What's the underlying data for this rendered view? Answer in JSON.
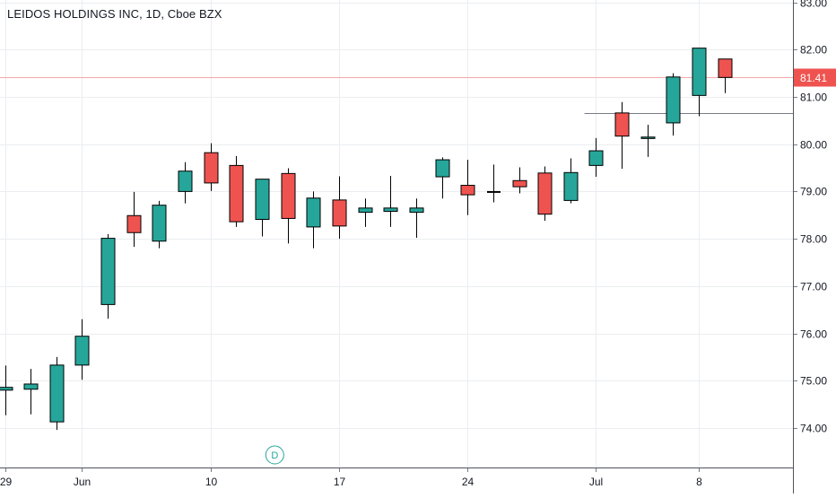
{
  "colors": {
    "up": "#26a69a",
    "down": "#ef5350",
    "outline": "#000000",
    "grid": "#ebedf0",
    "axis_text": "#131722",
    "price_line": "#f7a9a7",
    "price_label_bg": "#ef5350",
    "price_label_text": "#ffffff",
    "level_line": "#787b86",
    "marker": "#26a69a"
  },
  "chart_data": {
    "type": "candlestick",
    "title": "LEIDOS HOLDINGS INC, 1D, Cboe BZX",
    "y_axis": {
      "side": "right",
      "range": [
        73.3,
        83.0
      ],
      "ticks": [
        "74.00",
        "75.00",
        "76.00",
        "77.00",
        "78.00",
        "79.00",
        "80.00",
        "81.00",
        "82.00",
        "83.00"
      ]
    },
    "x_axis": {
      "ticks": [
        {
          "label": "29",
          "index": 0
        },
        {
          "label": "Jun",
          "index": 3
        },
        {
          "label": "10",
          "index": 8
        },
        {
          "label": "17",
          "index": 13
        },
        {
          "label": "24",
          "index": 18
        },
        {
          "label": "Jul",
          "index": 23
        },
        {
          "label": "8",
          "index": 27
        }
      ]
    },
    "grid": true,
    "candles": [
      {
        "o": 74.8,
        "h": 75.32,
        "l": 74.27,
        "c": 74.86
      },
      {
        "o": 74.82,
        "h": 75.25,
        "l": 74.29,
        "c": 74.93
      },
      {
        "o": 74.13,
        "h": 75.5,
        "l": 73.96,
        "c": 75.33
      },
      {
        "o": 75.33,
        "h": 76.3,
        "l": 75.02,
        "c": 75.94
      },
      {
        "o": 76.61,
        "h": 78.1,
        "l": 76.31,
        "c": 78.01
      },
      {
        "o": 78.49,
        "h": 78.99,
        "l": 77.83,
        "c": 78.13
      },
      {
        "o": 77.95,
        "h": 78.8,
        "l": 77.8,
        "c": 78.71
      },
      {
        "o": 79.0,
        "h": 79.62,
        "l": 78.75,
        "c": 79.43
      },
      {
        "o": 79.82,
        "h": 80.02,
        "l": 79.01,
        "c": 79.18
      },
      {
        "o": 79.55,
        "h": 79.75,
        "l": 78.25,
        "c": 78.36
      },
      {
        "o": 78.41,
        "h": 79.26,
        "l": 78.05,
        "c": 79.26
      },
      {
        "o": 79.38,
        "h": 79.49,
        "l": 77.9,
        "c": 78.43
      },
      {
        "o": 78.25,
        "h": 79.0,
        "l": 77.8,
        "c": 78.86
      },
      {
        "o": 78.82,
        "h": 79.32,
        "l": 78.0,
        "c": 78.27
      },
      {
        "o": 78.56,
        "h": 78.85,
        "l": 78.25,
        "c": 78.65
      },
      {
        "o": 78.58,
        "h": 79.33,
        "l": 78.25,
        "c": 78.65
      },
      {
        "o": 78.56,
        "h": 78.85,
        "l": 78.02,
        "c": 78.65
      },
      {
        "o": 79.31,
        "h": 79.72,
        "l": 78.85,
        "c": 79.67
      },
      {
        "o": 79.13,
        "h": 79.67,
        "l": 78.5,
        "c": 78.93
      },
      {
        "o": 78.98,
        "h": 79.57,
        "l": 78.77,
        "c": 78.99
      },
      {
        "o": 79.23,
        "h": 79.51,
        "l": 78.96,
        "c": 79.1
      },
      {
        "o": 79.39,
        "h": 79.53,
        "l": 78.38,
        "c": 78.52
      },
      {
        "o": 78.81,
        "h": 79.7,
        "l": 78.75,
        "c": 79.4
      },
      {
        "o": 79.55,
        "h": 80.13,
        "l": 79.31,
        "c": 79.86
      },
      {
        "o": 80.66,
        "h": 80.89,
        "l": 79.48,
        "c": 80.17
      },
      {
        "o": 80.12,
        "h": 80.41,
        "l": 79.73,
        "c": 80.15
      },
      {
        "o": 80.45,
        "h": 81.5,
        "l": 80.18,
        "c": 81.42
      },
      {
        "o": 81.03,
        "h": 82.03,
        "l": 80.59,
        "c": 82.03
      },
      {
        "o": 81.8,
        "h": 81.8,
        "l": 81.08,
        "c": 81.41
      }
    ],
    "last_price": 81.41,
    "last_price_label": "81.41",
    "horizontal_level": {
      "value": 80.65,
      "from_index": 22.55
    },
    "markers": [
      {
        "label": "D",
        "index": 10.5
      }
    ]
  }
}
